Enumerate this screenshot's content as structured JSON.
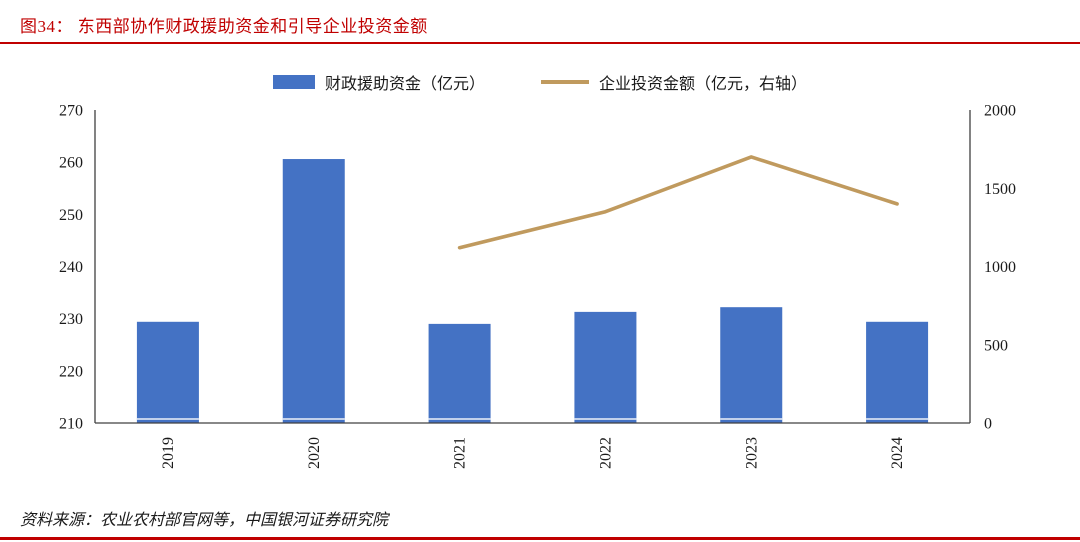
{
  "header": {
    "title": "图34： 东西部协作财政援助资金和引导企业投资金额"
  },
  "chart_data": {
    "type": "bar",
    "subtype": "bar-line combo with dual y-axes",
    "categories": [
      "2019",
      "2020",
      "2021",
      "2022",
      "2023",
      "2024"
    ],
    "series": [
      {
        "name": "财政援助资金（亿元）",
        "type": "bar",
        "axis": "left",
        "color": "#4472C4",
        "values": [
          229.4,
          260.6,
          229.0,
          231.3,
          232.2,
          229.4
        ]
      },
      {
        "name": "企业投资金额（亿元，右轴）",
        "type": "line",
        "axis": "right",
        "color": "#C09A5E",
        "values": [
          null,
          null,
          1120,
          1350,
          1700,
          1400
        ]
      }
    ],
    "left_axis": {
      "min": 210,
      "max": 270,
      "step": 10,
      "ticks": [
        210,
        220,
        230,
        240,
        250,
        260,
        270
      ]
    },
    "right_axis": {
      "min": 0,
      "max": 2000,
      "step": 500,
      "ticks": [
        0,
        500,
        1000,
        1500,
        2000
      ]
    },
    "grid": false,
    "legend_position": "top-center",
    "x_tick_rotation": -90
  },
  "footer": {
    "source": "资料来源：农业农村部官网等，中国银河证券研究院"
  },
  "colors": {
    "title_red": "#C00000",
    "divider_red": "#C00000",
    "bar_blue": "#4472C4",
    "line_gold": "#C09A5E",
    "axis_line": "#404040",
    "text": "#1a1a1a"
  }
}
